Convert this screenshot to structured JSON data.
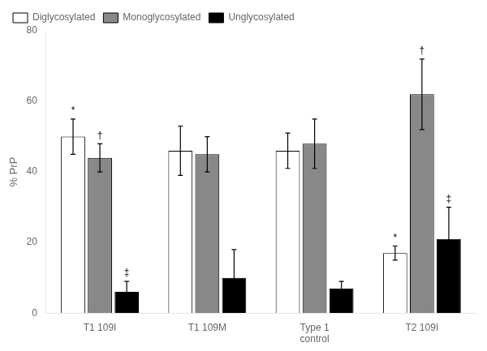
{
  "chart_data": {
    "type": "bar",
    "categories": [
      "T1 109I",
      "T1 109M",
      "Type 1\ncontrol",
      "T2 109I"
    ],
    "series": [
      {
        "name": "Diglycosylated",
        "color": "#ffffff",
        "values": [
          50,
          46,
          46,
          17
        ],
        "errors": [
          5,
          7,
          5,
          2
        ]
      },
      {
        "name": "Monoglycosylated",
        "color": "#888888",
        "values": [
          44,
          45,
          48,
          62
        ],
        "errors": [
          4,
          5,
          7,
          10
        ]
      },
      {
        "name": "Unglycosylated",
        "color": "#000000",
        "values": [
          6,
          10,
          7,
          21
        ],
        "errors": [
          3,
          8,
          2,
          9
        ]
      }
    ],
    "annotations": [
      {
        "category": "T1 109I",
        "series": "Diglycosylated",
        "text": "*"
      },
      {
        "category": "T1 109I",
        "series": "Monoglycosylated",
        "text": "†"
      },
      {
        "category": "T1 109I",
        "series": "Unglycosylated",
        "text": "‡"
      },
      {
        "category": "T2 109I",
        "series": "Diglycosylated",
        "text": "*"
      },
      {
        "category": "T2 109I",
        "series": "Monoglycosylated",
        "text": "†"
      },
      {
        "category": "T2 109I",
        "series": "Unglycosylated",
        "text": "‡"
      }
    ],
    "ylabel": "% PrP",
    "ylim": [
      0,
      80
    ],
    "yticks": [
      0,
      20,
      40,
      60,
      80
    ],
    "grid": false,
    "legend": "upper left"
  }
}
